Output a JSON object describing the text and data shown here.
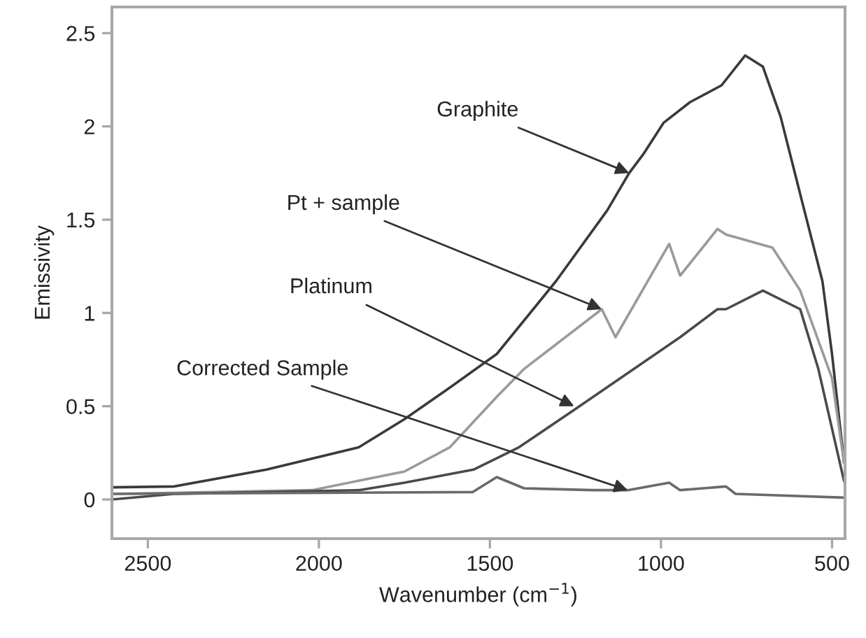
{
  "chart_data": {
    "type": "line",
    "xlabel": "Wavenumber (cm$^{−1}$)",
    "ylabel": "Emissivity",
    "xlim": [
      2605,
      462
    ],
    "ylim": [
      -0.21,
      2.64
    ],
    "xticks": [
      2500,
      2000,
      1500,
      1000,
      500
    ],
    "yticks": [
      0,
      0.5,
      1,
      1.5,
      2,
      2.5
    ],
    "grid": false,
    "legend": false,
    "series": [
      {
        "color": "#3a3a3a",
        "x": [
          2605,
          2423,
          2153,
          1883,
          1750,
          1617,
          1480,
          1307,
          1157,
          1093,
          1052,
          992,
          915,
          823,
          754,
          702,
          650,
          581,
          528,
          500,
          465
        ],
        "values": [
          0.065,
          0.07,
          0.16,
          0.28,
          0.43,
          0.6,
          0.78,
          1.17,
          1.55,
          1.75,
          1.85,
          2.02,
          2.13,
          2.22,
          2.38,
          2.32,
          2.05,
          1.55,
          1.17,
          0.78,
          0.2
        ]
      },
      {
        "color": "#9a9a9a",
        "x": [
          2605,
          2020,
          1750,
          1617,
          1480,
          1400,
          1173,
          1133,
          976,
          944,
          835,
          810,
          674,
          593,
          500,
          465
        ],
        "values": [
          0.03,
          0.05,
          0.15,
          0.28,
          0.55,
          0.7,
          1.02,
          0.87,
          1.37,
          1.2,
          1.45,
          1.42,
          1.35,
          1.12,
          0.65,
          0.2
        ]
      },
      {
        "color": "#4a4a4a",
        "x": [
          2605,
          2423,
          1883,
          1750,
          1548,
          1415,
          1254,
          944,
          835,
          810,
          702,
          593,
          540,
          465
        ],
        "values": [
          0.0,
          0.03,
          0.05,
          0.09,
          0.16,
          0.28,
          0.48,
          0.87,
          1.02,
          1.02,
          1.12,
          1.02,
          0.7,
          0.1
        ]
      },
      {
        "color": "#6a6a6a",
        "x": [
          2605,
          1550,
          1480,
          1400,
          1200,
          1097,
          976,
          944,
          810,
          782,
          465
        ],
        "values": [
          0.03,
          0.04,
          0.12,
          0.06,
          0.05,
          0.05,
          0.09,
          0.05,
          0.07,
          0.03,
          0.01
        ]
      }
    ],
    "annotations": [
      {
        "text": "Graphite",
        "x": 1093,
        "y": 1.75
      },
      {
        "text": "Pt + sample",
        "x": 1173,
        "y": 1.02
      },
      {
        "text": "Platinum",
        "x": 1254,
        "y": 0.5
      },
      {
        "text": "Corrected Sample",
        "x": 1097,
        "y": 0.05
      }
    ]
  }
}
